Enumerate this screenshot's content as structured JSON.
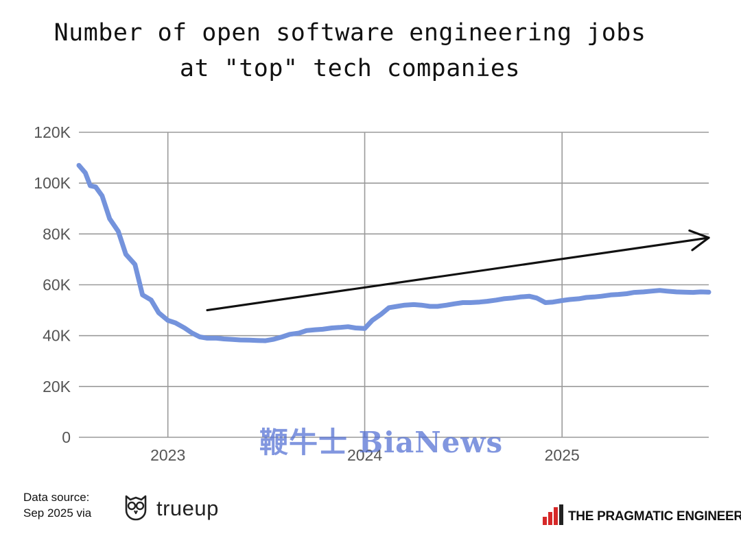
{
  "chart_data": {
    "type": "line",
    "title": "Number of open software engineering jobs at \"top\" tech companies",
    "title_lines": [
      "Number of open software engineering jobs",
      "at \"top\" tech companies"
    ],
    "xlabel": "",
    "ylabel": "",
    "xlim": [
      "2022-07-20",
      "2025-09-30"
    ],
    "ylim": [
      0,
      120000
    ],
    "x_ticks": [
      "2023",
      "2024",
      "2025"
    ],
    "y_ticks": [
      "0",
      "20K",
      "40K",
      "60K",
      "80K",
      "100K",
      "120K"
    ],
    "y_tick_values": [
      0,
      20000,
      40000,
      60000,
      80000,
      100000,
      120000
    ],
    "grid": true,
    "line_color": "#7493dc",
    "series": [
      {
        "x": [
          "2022-07-20",
          "2022-08-01",
          "2022-08-10",
          "2022-08-20",
          "2022-09-01",
          "2022-09-15",
          "2022-10-01",
          "2022-10-15",
          "2022-11-01",
          "2022-11-15",
          "2022-12-01",
          "2022-12-15",
          "2023-01-01",
          "2023-01-15",
          "2023-02-01",
          "2023-02-15",
          "2023-03-01",
          "2023-03-15",
          "2023-04-01",
          "2023-04-15",
          "2023-05-01",
          "2023-05-15",
          "2023-06-01",
          "2023-06-15",
          "2023-07-01",
          "2023-07-15",
          "2023-08-01",
          "2023-08-15",
          "2023-09-01",
          "2023-09-15",
          "2023-10-01",
          "2023-10-15",
          "2023-11-01",
          "2023-11-15",
          "2023-12-01",
          "2023-12-15",
          "2024-01-01",
          "2024-01-15",
          "2024-02-01",
          "2024-02-15",
          "2024-03-01",
          "2024-03-15",
          "2024-04-01",
          "2024-04-15",
          "2024-05-01",
          "2024-05-15",
          "2024-06-01",
          "2024-06-15",
          "2024-07-01",
          "2024-07-15",
          "2024-08-01",
          "2024-08-15",
          "2024-09-01",
          "2024-09-15",
          "2024-10-01",
          "2024-10-15",
          "2024-11-01",
          "2024-11-15",
          "2024-12-01",
          "2024-12-15",
          "2025-01-01",
          "2025-01-15",
          "2025-02-01",
          "2025-02-15",
          "2025-03-01",
          "2025-03-15",
          "2025-04-01",
          "2025-04-15",
          "2025-05-01",
          "2025-05-15",
          "2025-06-01",
          "2025-06-15",
          "2025-07-01",
          "2025-07-15",
          "2025-08-01",
          "2025-08-15",
          "2025-09-01",
          "2025-09-15",
          "2025-09-30"
        ],
        "values": [
          107000,
          104000,
          99000,
          98500,
          95000,
          86000,
          81000,
          72000,
          68000,
          56000,
          54000,
          49000,
          46000,
          45000,
          43000,
          41000,
          39500,
          39000,
          39000,
          38700,
          38500,
          38300,
          38200,
          38100,
          38000,
          38500,
          39500,
          40500,
          41000,
          42000,
          42300,
          42500,
          43000,
          43200,
          43500,
          43000,
          42800,
          46000,
          48500,
          51000,
          51500,
          52000,
          52200,
          52000,
          51500,
          51500,
          52000,
          52500,
          53000,
          53000,
          53200,
          53500,
          54000,
          54500,
          54800,
          55200,
          55500,
          54800,
          53000,
          53200,
          53800,
          54200,
          54500,
          55000,
          55200,
          55500,
          56000,
          56200,
          56500,
          57000,
          57200,
          57500,
          57800,
          57500,
          57200,
          57100,
          57000,
          57200,
          57100
        ]
      }
    ],
    "annotations": [
      {
        "type": "arrow",
        "start": {
          "x": "2023-03-15",
          "y": 50000
        },
        "end": {
          "x": "2025-09-30",
          "y": 78500
        },
        "color": "#111111"
      }
    ]
  },
  "footer": {
    "source_line1": "Data source:",
    "source_line2": "Sep 2025 via",
    "source_brand": "trueup",
    "publisher": "THE PRAGMATIC ENGINEER"
  },
  "watermark": "鞭牛士 BiaNews",
  "colors": {
    "line": "#7493dc",
    "grid": "#9a9a9a",
    "arrow": "#111111",
    "logo_red": "#d62828",
    "watermark": "#506ed2"
  }
}
